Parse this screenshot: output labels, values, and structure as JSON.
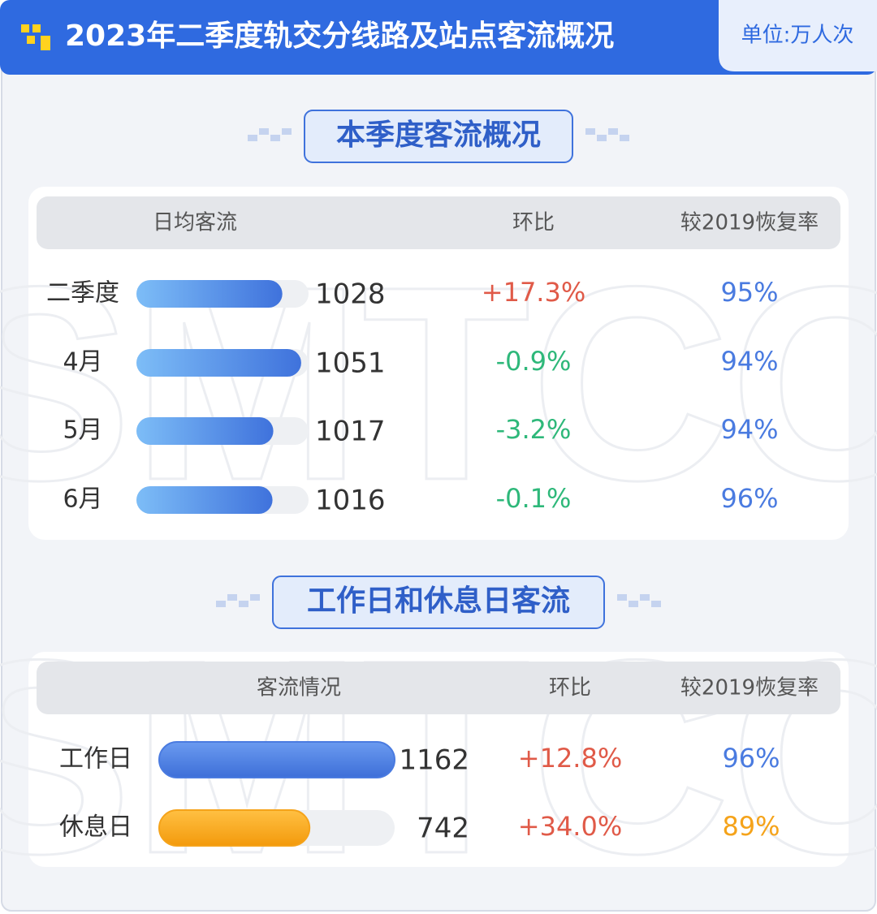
{
  "header": {
    "title": "2023年二季度轨交分线路及站点客流概况",
    "unit": "单位:万人次"
  },
  "watermark": "SMTCC",
  "sections": [
    {
      "title": "本季度客流概况",
      "columns": [
        "日均客流",
        "环比",
        "较2019恢复率"
      ],
      "xlim": [
        850,
        1060
      ],
      "rows": [
        {
          "label": "二季度",
          "value": 1028,
          "change": "+17.3%",
          "recovery": "95%",
          "color": "#4a7be0"
        },
        {
          "label": "4月",
          "value": 1051,
          "change": "-0.9%",
          "recovery": "94%",
          "color": "#4a7be0"
        },
        {
          "label": "5月",
          "value": 1017,
          "change": "-3.2%",
          "recovery": "94%",
          "color": "#4a7be0"
        },
        {
          "label": "6月",
          "value": 1016,
          "change": "-0.1%",
          "recovery": "96%",
          "color": "#4a7be0"
        }
      ]
    },
    {
      "title": "工作日和休息日客流",
      "columns": [
        "客流情况",
        "环比",
        "较2019恢复率"
      ],
      "xlim": [
        0,
        1162
      ],
      "rows": [
        {
          "label": "工作日",
          "value": 1162,
          "change": "+12.8%",
          "recovery": "96%",
          "color": "#4a7be0"
        },
        {
          "label": "休息日",
          "value": 742,
          "change": "+34.0%",
          "recovery": "89%",
          "color": "#f5a31a"
        }
      ]
    }
  ]
}
